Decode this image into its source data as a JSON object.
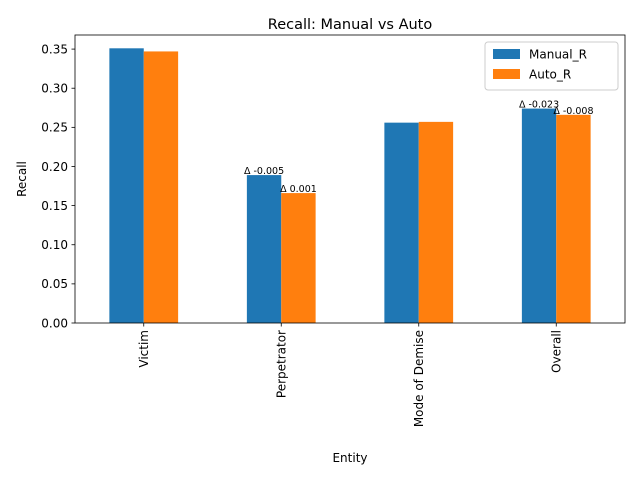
{
  "chart_data": {
    "type": "bar",
    "title": "Recall: Manual vs Auto",
    "xlabel": "Entity",
    "ylabel": "Recall",
    "categories": [
      "Victim",
      "Perpetrator",
      "Mode of Demise",
      "Overall"
    ],
    "series": [
      {
        "name": "Manual_R",
        "color": "#1f77b4",
        "values": [
          0.351,
          0.189,
          0.256,
          0.274
        ]
      },
      {
        "name": "Auto_R",
        "color": "#ff7f0e",
        "values": [
          0.347,
          0.166,
          0.257,
          0.266
        ]
      }
    ],
    "ylim": [
      0,
      0.368
    ],
    "yticks": [
      "0.00",
      "0.05",
      "0.10",
      "0.15",
      "0.20",
      "0.25",
      "0.30",
      "0.35"
    ],
    "annotations": [
      {
        "text": "Δ -0.005",
        "category": "Perpetrator",
        "series": "Manual_R"
      },
      {
        "text": "Δ 0.001",
        "category": "Perpetrator",
        "series": "Auto_R"
      },
      {
        "text": "Δ -0.023",
        "category": "Overall",
        "series": "Manual_R"
      },
      {
        "text": "Δ -0.008",
        "category": "Overall",
        "series": "Auto_R"
      }
    ],
    "legend_position": "upper right",
    "grid": false
  }
}
